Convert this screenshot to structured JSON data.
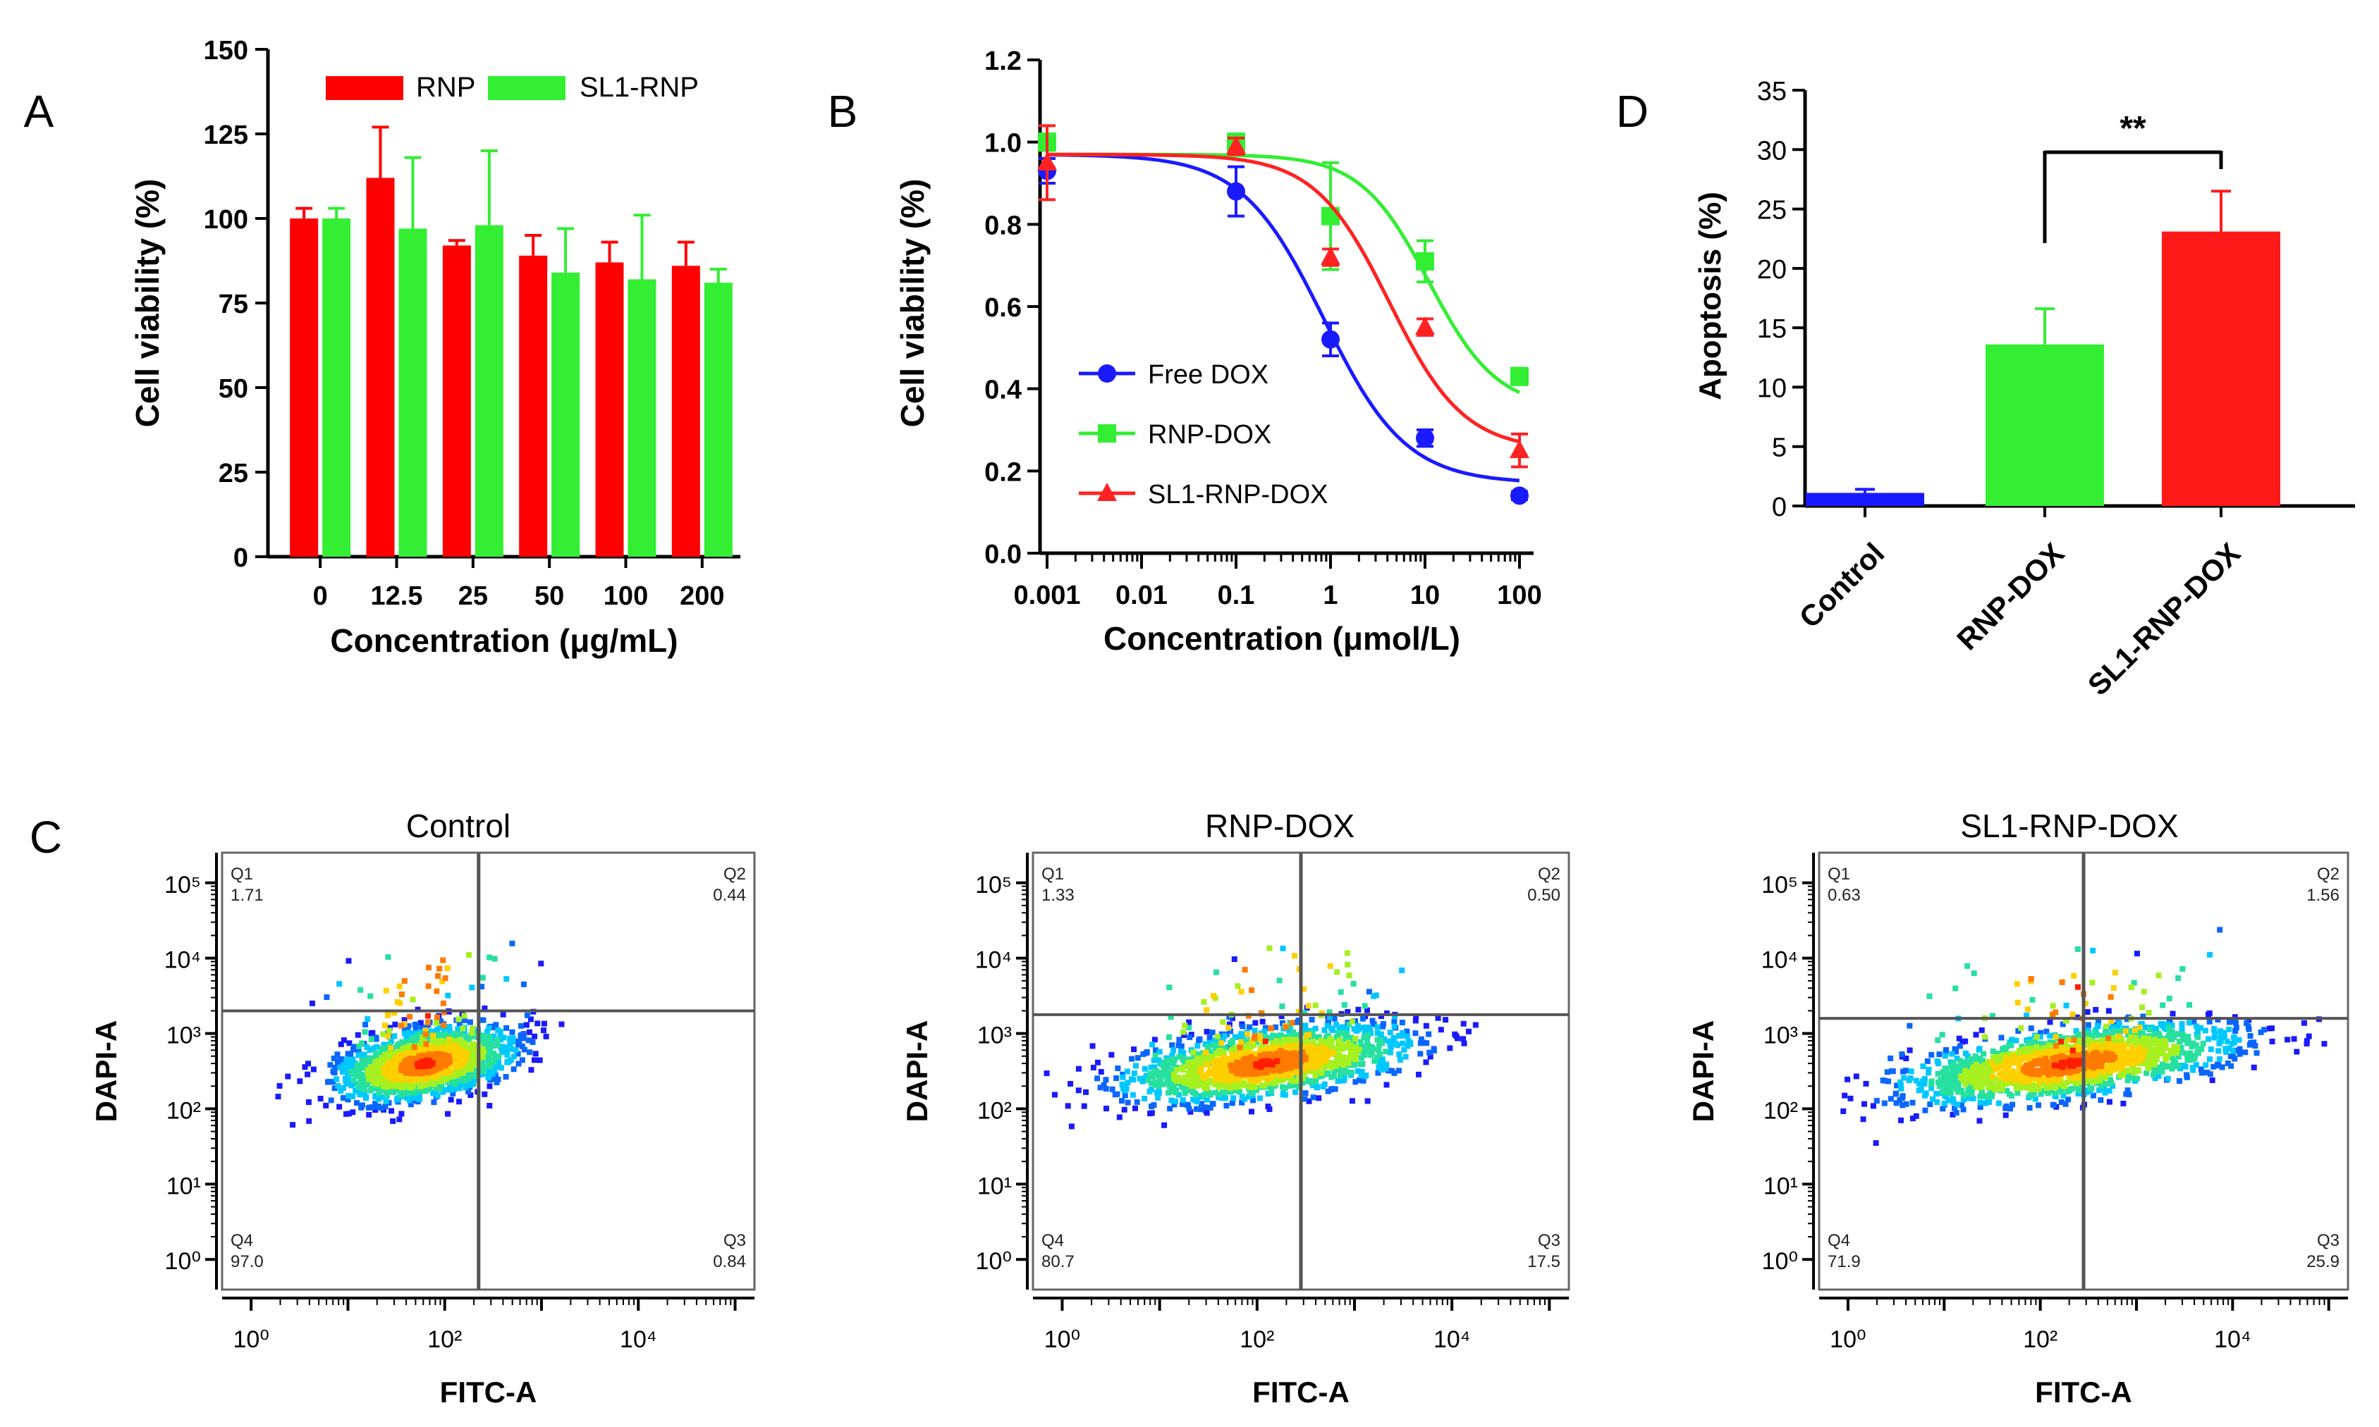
{
  "panel_labels": {
    "A": "A",
    "B": "B",
    "C": "C",
    "D": "D"
  },
  "chart_data": [
    {
      "id": "A",
      "type": "bar",
      "title": "",
      "xlabel": "Concentration (μg/mL)",
      "ylabel": "Cell viability (%)",
      "ylim": [
        0,
        150
      ],
      "yticks": [
        "0",
        "25",
        "50",
        "75",
        "100",
        "125",
        "150"
      ],
      "categories": [
        "0",
        "12.5",
        "25",
        "50",
        "100",
        "200"
      ],
      "series": [
        {
          "name": "RNP",
          "color": "#ff0000",
          "values": [
            100,
            112,
            92,
            89,
            87,
            86
          ],
          "errors": [
            3,
            15,
            1.5,
            6,
            6,
            7
          ]
        },
        {
          "name": "SL1-RNP",
          "color": "#33ee33",
          "values": [
            100,
            97,
            98,
            84,
            82,
            81
          ],
          "errors": [
            3,
            21,
            22,
            13,
            19,
            4
          ]
        }
      ],
      "legend_position": "top"
    },
    {
      "id": "B",
      "type": "line",
      "xscale": "log",
      "xlabel": "Concentration (μmol/L)",
      "ylabel": "Cell viability (%)",
      "ylim": [
        0,
        1.2
      ],
      "yticks": [
        "0.0",
        "0.2",
        "0.4",
        "0.6",
        "0.8",
        "1.0",
        "1.2"
      ],
      "xticks": [
        "0.001",
        "0.01",
        "0.1",
        "1",
        "10",
        "100"
      ],
      "x": [
        0.001,
        0.1,
        1,
        10,
        100
      ],
      "series": [
        {
          "name": "Free DOX",
          "color": "#1a1aff",
          "marker": "circle",
          "values": [
            0.93,
            0.88,
            0.52,
            0.28,
            0.14
          ],
          "errors": [
            0.03,
            0.06,
            0.04,
            0.02,
            0.01
          ],
          "fit": {
            "top": 0.97,
            "bottom": 0.17,
            "ec50": 0.85,
            "hill": 1.0
          }
        },
        {
          "name": "RNP-DOX",
          "color": "#33ee33",
          "marker": "square",
          "values": [
            1.0,
            1.0,
            0.82,
            0.71,
            0.43
          ],
          "errors": [
            0.02,
            0.02,
            0.13,
            0.05,
            0.02
          ],
          "fit": {
            "top": 0.97,
            "bottom": 0.35,
            "ec50": 11,
            "hill": 1.2
          }
        },
        {
          "name": "SL1-RNP-DOX",
          "color": "#ff2222",
          "marker": "triangle",
          "values": [
            0.95,
            0.99,
            0.72,
            0.55,
            0.25
          ],
          "errors": [
            0.09,
            0.02,
            0.02,
            0.02,
            0.04
          ],
          "fit": {
            "top": 0.97,
            "bottom": 0.25,
            "ec50": 4.2,
            "hill": 1.1
          }
        }
      ],
      "legend_position": "lower-left"
    },
    {
      "id": "D",
      "type": "bar",
      "xlabel": "",
      "ylabel": "Apoptosis (%)",
      "ylim": [
        0,
        35
      ],
      "yticks": [
        "0",
        "5",
        "10",
        "15",
        "20",
        "25",
        "30",
        "35"
      ],
      "categories": [
        "Control",
        "RNP-DOX",
        "SL1-RNP-DOX"
      ],
      "values": [
        1.1,
        13.6,
        23.1
      ],
      "errors": [
        0.3,
        3.0,
        3.4
      ],
      "colors": [
        "#1a1aff",
        "#33ee33",
        "#ff1a1a"
      ],
      "annotation": "**"
    },
    {
      "id": "C",
      "type": "scatter",
      "xlabel": "FITC-A",
      "ylabel": "DAPI-A",
      "xticks": [
        "10⁰",
        "10²",
        "10⁴"
      ],
      "yticks": [
        "10⁰",
        "10¹",
        "10²",
        "10³",
        "10⁴",
        "10⁵"
      ],
      "plots": [
        {
          "title": "Control",
          "gate_x": 2.35,
          "gate_y": 3.3,
          "quadrants": {
            "Q1": {
              "name": "Q1",
              "value": "1.71"
            },
            "Q2": {
              "name": "Q2",
              "value": "0.44"
            },
            "Q3": {
              "name": "Q3",
              "value": "0.84"
            },
            "Q4": {
              "name": "Q4",
              "value": "97.0"
            }
          },
          "center": [
            1.8,
            2.6
          ]
        },
        {
          "title": "RNP-DOX",
          "gate_x": 2.45,
          "gate_y": 3.25,
          "quadrants": {
            "Q1": {
              "name": "Q1",
              "value": "1.33"
            },
            "Q2": {
              "name": "Q2",
              "value": "0.50"
            },
            "Q3": {
              "name": "Q3",
              "value": "17.5"
            },
            "Q4": {
              "name": "Q4",
              "value": "80.7"
            }
          },
          "center": [
            2.1,
            2.6
          ]
        },
        {
          "title": "SL1-RNP-DOX",
          "gate_x": 2.45,
          "gate_y": 3.2,
          "quadrants": {
            "Q1": {
              "name": "Q1",
              "value": "0.63"
            },
            "Q2": {
              "name": "Q2",
              "value": "1.56"
            },
            "Q3": {
              "name": "Q3",
              "value": "25.9"
            },
            "Q4": {
              "name": "Q4",
              "value": "71.9"
            }
          },
          "center": [
            2.3,
            2.6
          ]
        }
      ]
    }
  ]
}
